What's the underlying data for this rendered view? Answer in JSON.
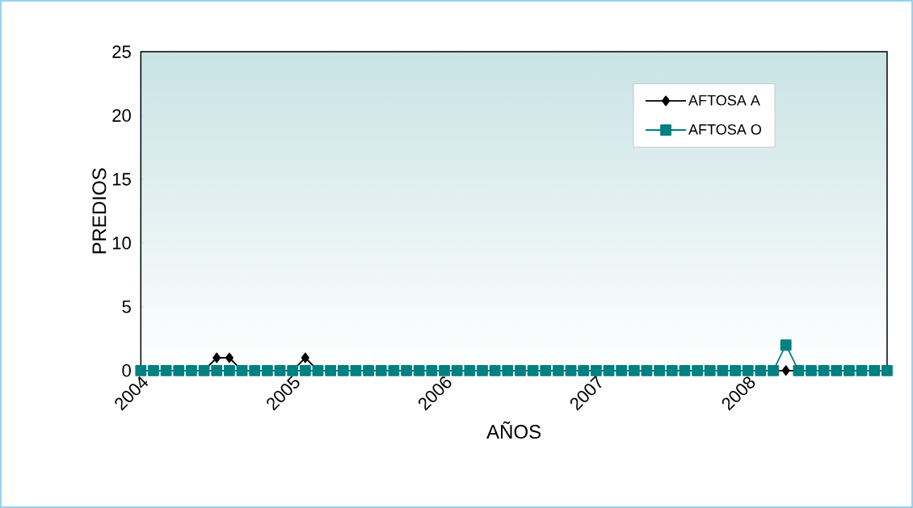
{
  "chart_data": {
    "type": "line",
    "xlabel": "AÑOS",
    "ylabel": "PREDIOS",
    "categories": [
      "2004",
      null,
      null,
      null,
      null,
      null,
      null,
      null,
      null,
      null,
      null,
      null,
      "2005",
      null,
      null,
      null,
      null,
      null,
      null,
      null,
      null,
      null,
      null,
      null,
      "2006",
      null,
      null,
      null,
      null,
      null,
      null,
      null,
      null,
      null,
      null,
      null,
      "2007",
      null,
      null,
      null,
      null,
      null,
      null,
      null,
      null,
      null,
      null,
      null,
      "2008",
      null,
      null,
      null,
      null,
      null,
      null,
      null,
      null,
      null,
      null,
      null
    ],
    "series": [
      {
        "name": "AFTOSA A",
        "color": "#000000",
        "marker": "diamond",
        "values": [
          null,
          null,
          null,
          null,
          null,
          0,
          1,
          1,
          0,
          null,
          null,
          null,
          0,
          1,
          0,
          null,
          null,
          null,
          null,
          null,
          null,
          null,
          null,
          null,
          null,
          null,
          null,
          null,
          null,
          null,
          null,
          null,
          null,
          null,
          null,
          null,
          null,
          null,
          null,
          null,
          null,
          null,
          null,
          null,
          null,
          null,
          null,
          null,
          null,
          null,
          0,
          0,
          0,
          null,
          null,
          null,
          null,
          null,
          null,
          null
        ]
      },
      {
        "name": "AFTOSA O",
        "color": "#008080",
        "marker": "square",
        "values": [
          0,
          0,
          0,
          0,
          0,
          0,
          0,
          0,
          0,
          0,
          0,
          0,
          0,
          0,
          0,
          0,
          0,
          0,
          0,
          0,
          0,
          0,
          0,
          0,
          0,
          0,
          0,
          0,
          0,
          0,
          0,
          0,
          0,
          0,
          0,
          0,
          0,
          0,
          0,
          0,
          0,
          0,
          0,
          0,
          0,
          0,
          0,
          0,
          0,
          0,
          0,
          2,
          0,
          0,
          0,
          0,
          0,
          0,
          0,
          0
        ]
      }
    ],
    "ylim": [
      0,
      25
    ],
    "yticks": [
      0,
      5,
      10,
      15,
      20,
      25
    ],
    "grid": false,
    "legend": "top right"
  }
}
